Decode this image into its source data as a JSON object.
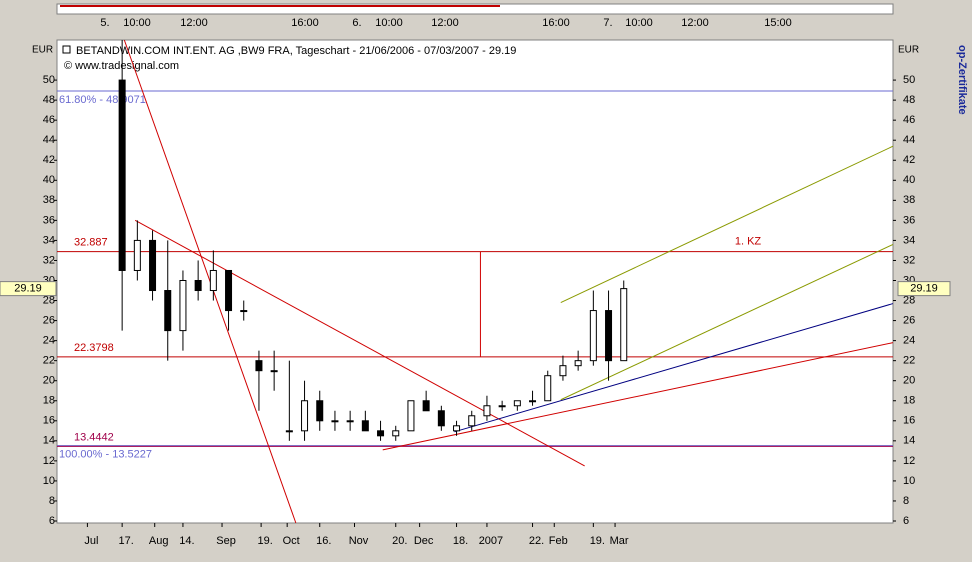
{
  "chart_data": {
    "type": "candlestick",
    "title": "BETANDWIN.COM INT.ENT. AG ,BW9 FRA, Tageschart - 21/06/2006 - 07/03/2007 - 29.19",
    "subtitle": "© www.tradesignal.com",
    "side_text": "op-Zertifikate",
    "y_unit": "EUR",
    "top_axis_labels": [
      "5.",
      "10:00",
      "12:00",
      "16:00",
      "6.",
      "10:00",
      "12:00",
      "16:00",
      "7.",
      "10:00",
      "12:00",
      "15:00"
    ],
    "xlim": [
      "2006-06-17",
      "2007-07-07"
    ],
    "xticks": [
      {
        "value": "2006-07-01",
        "label": "Jul"
      },
      {
        "value": "2006-07-17",
        "label": "17."
      },
      {
        "value": "2006-08-01",
        "label": "Aug"
      },
      {
        "value": "2006-08-14",
        "label": "14."
      },
      {
        "value": "2006-09-01",
        "label": "Sep"
      },
      {
        "value": "2006-09-19",
        "label": "19."
      },
      {
        "value": "2006-10-01",
        "label": "Oct"
      },
      {
        "value": "2006-10-16",
        "label": "16."
      },
      {
        "value": "2006-11-01",
        "label": "Nov"
      },
      {
        "value": "2006-11-20",
        "label": "20."
      },
      {
        "value": "2006-12-01",
        "label": "Dec"
      },
      {
        "value": "2006-12-18",
        "label": "18."
      },
      {
        "value": "2007-01-01",
        "label": "2007"
      },
      {
        "value": "2007-01-22",
        "label": "22."
      },
      {
        "value": "2007-02-01",
        "label": "Feb"
      },
      {
        "value": "2007-02-19",
        "label": "19."
      },
      {
        "value": "2007-03-01",
        "label": "Mar"
      }
    ],
    "ylim": [
      5.8,
      54
    ],
    "yticks": [
      6,
      8,
      10,
      12,
      14,
      16,
      18,
      20,
      22,
      24,
      26,
      28,
      30,
      32,
      34,
      36,
      38,
      40,
      42,
      44,
      46,
      48,
      50
    ],
    "x": [
      "2006-07-17",
      "2006-07-24",
      "2006-07-31",
      "2006-08-07",
      "2006-08-14",
      "2006-08-21",
      "2006-08-28",
      "2006-09-04",
      "2006-09-11",
      "2006-09-18",
      "2006-09-25",
      "2006-10-02",
      "2006-10-09",
      "2006-10-16",
      "2006-10-23",
      "2006-10-30",
      "2006-11-06",
      "2006-11-13",
      "2006-11-20",
      "2006-11-27",
      "2006-12-04",
      "2006-12-11",
      "2006-12-18",
      "2006-12-25",
      "2007-01-01",
      "2007-01-08",
      "2007-01-15",
      "2007-01-22",
      "2007-01-29",
      "2007-02-05",
      "2007-02-12",
      "2007-02-19",
      "2007-02-26",
      "2007-03-05"
    ],
    "open": [
      50,
      31,
      34,
      29,
      25,
      30,
      29,
      31,
      27,
      22,
      21,
      15,
      15,
      18,
      16,
      16,
      16,
      15,
      14.5,
      15,
      18,
      17,
      15,
      15.5,
      16.5,
      17.5,
      17.5,
      18,
      18,
      20.5,
      21.5,
      22,
      27,
      22
    ],
    "high": [
      54,
      36,
      35,
      34,
      31,
      32,
      33,
      31,
      28,
      23,
      23,
      22,
      20,
      19,
      17,
      17,
      17,
      16,
      15.5,
      18,
      19,
      17.5,
      16,
      17,
      18.5,
      18,
      18,
      19,
      21,
      22.5,
      23,
      29,
      29,
      30
    ],
    "low": [
      25,
      30,
      28,
      22,
      23,
      28,
      28,
      25,
      26,
      17,
      19,
      14,
      14,
      15,
      15,
      15,
      15,
      14,
      14,
      15,
      17,
      15,
      14.5,
      15,
      16,
      17,
      17,
      17.5,
      18,
      20,
      21,
      21.5,
      20,
      22
    ],
    "close": [
      31,
      34,
      29,
      25,
      30,
      29,
      31,
      27,
      27,
      21,
      21,
      15,
      18,
      16,
      16,
      16,
      15,
      14.5,
      15,
      18,
      17,
      15.5,
      15.5,
      16.5,
      17.5,
      17.5,
      18,
      18,
      20.5,
      21.5,
      22,
      27,
      22,
      29.19
    ],
    "levels": [
      {
        "value": 48.9071,
        "label": "61.80% - 48.9071",
        "color": "#6a6ad0"
      },
      {
        "value": 32.887,
        "color": "#c00000"
      },
      {
        "value": 22.3798,
        "color": "#c00000"
      },
      {
        "value": 13.5227,
        "label": "100.00% - 13.5227",
        "color": "#6a6ad0"
      },
      {
        "value": 13.4442,
        "color": "#a0004a"
      }
    ],
    "annotation": "1. KZ",
    "trendlines": [
      {
        "x": [
          "2006-07-18",
          "2006-10-05"
        ],
        "y": [
          54,
          5.8
        ],
        "color": "#d00000"
      },
      {
        "x": [
          "2006-07-23",
          "2007-02-15"
        ],
        "y": [
          36,
          11.5
        ],
        "color": "#d00000"
      },
      {
        "x": [
          "2006-12-29",
          "2006-12-29"
        ],
        "y": [
          32.887,
          22.3798
        ],
        "color": "#d00000"
      },
      {
        "x": [
          "2006-11-14",
          "2007-07-07"
        ],
        "y": [
          13.1,
          23.8
        ],
        "color": "#d00000"
      },
      {
        "x": [
          "2006-12-17",
          "2007-07-07"
        ],
        "y": [
          14.9,
          27.7
        ],
        "color": "#000080"
      },
      {
        "x": [
          "2007-02-04",
          "2007-07-07"
        ],
        "y": [
          18.1,
          33.6
        ],
        "color": "#8a9a00"
      },
      {
        "x": [
          "2007-02-04",
          "2007-07-07"
        ],
        "y": [
          27.8,
          43.4
        ],
        "color": "#8a9a00"
      }
    ]
  }
}
